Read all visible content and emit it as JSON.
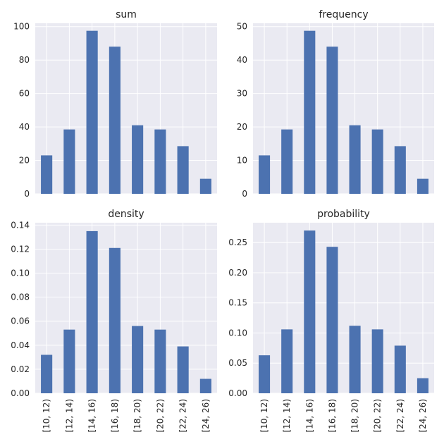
{
  "chart_data": [
    {
      "type": "bar",
      "title": "sum",
      "categories": [
        "[10, 12)",
        "[12, 14)",
        "[14, 16)",
        "[16, 18)",
        "[18, 20)",
        "[20, 22)",
        "[22, 24)",
        "[24, 26)"
      ],
      "values": [
        23,
        38.5,
        97.5,
        88,
        41,
        38.5,
        28.5,
        9
      ],
      "ylim": [
        0,
        102
      ],
      "yticks": [
        0,
        20,
        40,
        60,
        80,
        100
      ],
      "ytick_labels": [
        "0",
        "20",
        "40",
        "60",
        "80",
        "100"
      ],
      "show_xticklabels": false,
      "grid": true,
      "color": "#4c72b0"
    },
    {
      "type": "bar",
      "title": "frequency",
      "categories": [
        "[10, 12)",
        "[12, 14)",
        "[14, 16)",
        "[16, 18)",
        "[18, 20)",
        "[20, 22)",
        "[22, 24)",
        "[24, 26)"
      ],
      "values": [
        11.5,
        19.25,
        48.75,
        44,
        20.5,
        19.25,
        14.25,
        4.5
      ],
      "ylim": [
        0,
        51
      ],
      "yticks": [
        0,
        10,
        20,
        30,
        40,
        50
      ],
      "ytick_labels": [
        "0",
        "10",
        "20",
        "30",
        "40",
        "50"
      ],
      "show_xticklabels": false,
      "grid": true,
      "color": "#4c72b0"
    },
    {
      "type": "bar",
      "title": "density",
      "categories": [
        "[10, 12)",
        "[12, 14)",
        "[14, 16)",
        "[16, 18)",
        "[18, 20)",
        "[20, 22)",
        "[22, 24)",
        "[24, 26)"
      ],
      "values": [
        0.032,
        0.053,
        0.135,
        0.121,
        0.056,
        0.053,
        0.039,
        0.012
      ],
      "ylim": [
        0,
        0.142
      ],
      "yticks": [
        0,
        0.02,
        0.04,
        0.06,
        0.08,
        0.1,
        0.12,
        0.14
      ],
      "ytick_labels": [
        "0.00",
        "0.02",
        "0.04",
        "0.06",
        "0.08",
        "0.10",
        "0.12",
        "0.14"
      ],
      "show_xticklabels": true,
      "grid": true,
      "color": "#4c72b0"
    },
    {
      "type": "bar",
      "title": "probability",
      "categories": [
        "[10, 12)",
        "[12, 14)",
        "[14, 16)",
        "[16, 18)",
        "[18, 20)",
        "[20, 22)",
        "[22, 24)",
        "[24, 26)"
      ],
      "values": [
        0.063,
        0.106,
        0.27,
        0.243,
        0.112,
        0.106,
        0.079,
        0.025
      ],
      "ylim": [
        0,
        0.283
      ],
      "yticks": [
        0,
        0.05,
        0.1,
        0.15,
        0.2,
        0.25
      ],
      "ytick_labels": [
        "0.00",
        "0.05",
        "0.10",
        "0.15",
        "0.20",
        "0.25"
      ],
      "show_xticklabels": true,
      "grid": true,
      "color": "#4c72b0"
    }
  ]
}
